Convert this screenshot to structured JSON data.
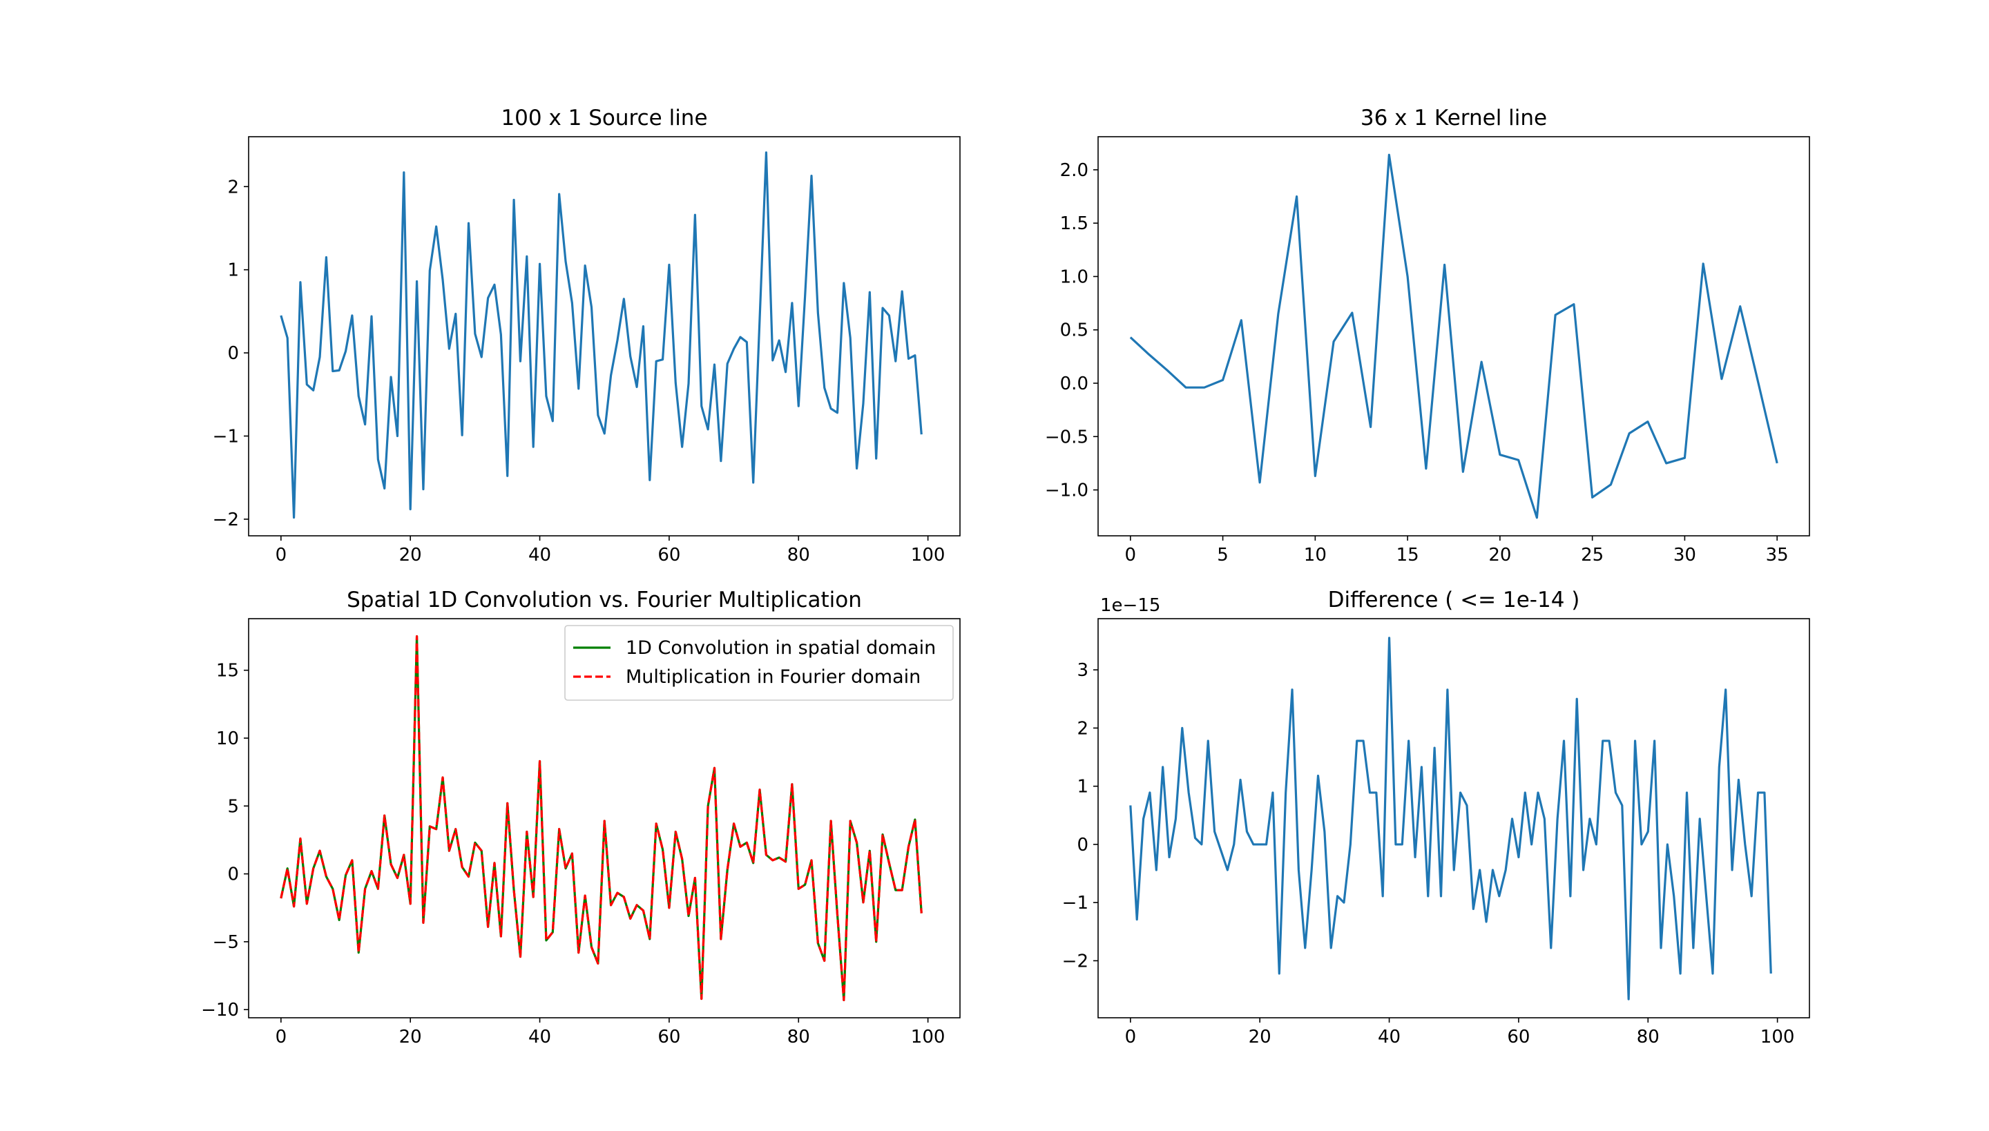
{
  "figure": {
    "background": "#ffffff"
  },
  "chart_data": [
    {
      "type": "line",
      "panel": "top-left",
      "title": "100 x 1 Source line",
      "xlabel": "",
      "ylabel": "",
      "xlim": [
        -5,
        104.95
      ],
      "ylim": [
        -2.2,
        2.6
      ],
      "xticks": [
        0,
        20,
        40,
        60,
        80,
        100
      ],
      "xtick_labels": [
        "0",
        "20",
        "40",
        "60",
        "80",
        "100"
      ],
      "yticks": [
        -2,
        -1,
        0,
        1,
        2
      ],
      "ytick_labels": [
        "−2",
        "−1",
        "0",
        "1",
        "2"
      ],
      "legend": null,
      "series": [
        {
          "name": "Source line",
          "color": "#1f77b4",
          "dash": "solid",
          "x_start": 0,
          "values": [
            0.45,
            0.18,
            -1.98,
            0.85,
            -0.38,
            -0.45,
            -0.05,
            1.15,
            -0.22,
            -0.21,
            0.02,
            0.45,
            -0.52,
            -0.86,
            0.44,
            -1.28,
            -1.63,
            -0.29,
            -1.0,
            2.17,
            -1.88,
            0.86,
            -1.64,
            0.99,
            1.52,
            0.88,
            0.05,
            0.47,
            -0.99,
            1.56,
            0.23,
            -0.05,
            0.66,
            0.82,
            0.22,
            -1.48,
            1.84,
            -0.1,
            1.16,
            -1.13,
            1.07,
            -0.52,
            -0.82,
            1.91,
            1.1,
            0.6,
            -0.43,
            1.05,
            0.55,
            -0.75,
            -0.97,
            -0.27,
            0.15,
            0.65,
            -0.04,
            -0.41,
            0.32,
            -1.53,
            -0.1,
            -0.08,
            1.06,
            -0.36,
            -1.13,
            -0.37,
            1.66,
            -0.64,
            -0.92,
            -0.14,
            -1.3,
            -0.13,
            0.05,
            0.19,
            0.13,
            -1.56,
            0.42,
            2.41,
            -0.09,
            0.15,
            -0.23,
            0.6,
            -0.64,
            0.68,
            2.13,
            0.48,
            -0.42,
            -0.67,
            -0.72,
            0.84,
            0.18,
            -1.39,
            -0.61,
            0.73,
            -1.27,
            0.54,
            0.45,
            -0.1,
            0.74,
            -0.07,
            -0.03,
            -0.98
          ]
        }
      ]
    },
    {
      "type": "line",
      "panel": "top-right",
      "title": "36 x 1 Kernel line",
      "xlabel": "",
      "ylabel": "",
      "xlim": [
        -1.75,
        36.75
      ],
      "ylim": [
        -1.43,
        2.31
      ],
      "xticks": [
        0,
        5,
        10,
        15,
        20,
        25,
        30,
        35
      ],
      "xtick_labels": [
        "0",
        "5",
        "10",
        "15",
        "20",
        "25",
        "30",
        "35"
      ],
      "yticks": [
        -1.0,
        -0.5,
        0.0,
        0.5,
        1.0,
        1.5,
        2.0
      ],
      "ytick_labels": [
        "−1.0",
        "−0.5",
        "0.0",
        "0.5",
        "1.0",
        "1.5",
        "2.0"
      ],
      "legend": null,
      "series": [
        {
          "name": "Kernel line",
          "color": "#1f77b4",
          "dash": "solid",
          "x_start": 0,
          "values": [
            0.43,
            0.27,
            0.12,
            -0.04,
            -0.04,
            0.03,
            0.59,
            -0.93,
            0.65,
            1.75,
            -0.87,
            0.39,
            0.66,
            -0.41,
            2.14,
            1.0,
            -0.8,
            1.11,
            -0.83,
            0.2,
            -0.67,
            -0.72,
            -1.26,
            0.64,
            0.74,
            -1.07,
            -0.95,
            -0.47,
            -0.36,
            -0.75,
            -0.7,
            1.12,
            0.04,
            0.72,
            -0.01,
            -0.75
          ]
        }
      ]
    },
    {
      "type": "line",
      "panel": "bottom-left",
      "title": "Spatial 1D Convolution vs. Fourier Multiplication",
      "xlabel": "",
      "ylabel": "",
      "xlim": [
        -5,
        104.95
      ],
      "ylim": [
        -10.6,
        18.8
      ],
      "xticks": [
        0,
        20,
        40,
        60,
        80,
        100
      ],
      "xtick_labels": [
        "0",
        "20",
        "40",
        "60",
        "80",
        "100"
      ],
      "yticks": [
        -10,
        -5,
        0,
        5,
        10,
        15
      ],
      "ytick_labels": [
        "−10",
        "−5",
        "0",
        "5",
        "10",
        "15"
      ],
      "legend": {
        "position": "upper right",
        "entries": [
          "1D Convolution in spatial domain",
          "Multiplication in Fourier domain"
        ]
      },
      "series": [
        {
          "name": "1D Convolution in spatial domain",
          "color": "#008000",
          "dash": "solid",
          "x_start": 0,
          "values": [
            -1.8,
            0.4,
            -2.4,
            2.6,
            -2.2,
            0.4,
            1.7,
            -0.2,
            -1.1,
            -3.4,
            -0.1,
            1.0,
            -5.8,
            -1.1,
            0.2,
            -1.1,
            4.3,
            0.7,
            -0.3,
            1.4,
            -2.2,
            17.5,
            -3.6,
            3.5,
            3.3,
            7.1,
            1.7,
            3.3,
            0.5,
            -0.2,
            2.3,
            1.7,
            -3.9,
            0.8,
            -4.6,
            5.2,
            -1.2,
            -6.1,
            3.1,
            -1.7,
            8.3,
            -4.9,
            -4.3,
            3.3,
            0.4,
            1.5,
            -5.8,
            -1.6,
            -5.4,
            -6.6,
            3.9,
            -2.3,
            -1.4,
            -1.7,
            -3.3,
            -2.3,
            -2.7,
            -4.8,
            3.7,
            1.8,
            -2.5,
            3.1,
            1.1,
            -3.1,
            -0.3,
            -9.2,
            5.0,
            7.8,
            -4.8,
            0.3,
            3.7,
            2.0,
            2.3,
            0.8,
            6.2,
            1.4,
            1.0,
            1.2,
            0.9,
            6.6,
            -1.1,
            -0.8,
            1.0,
            -5.1,
            -6.4,
            3.9,
            -3.0,
            -9.3,
            3.9,
            2.3,
            -2.1,
            1.7,
            -5.0,
            2.9,
            0.8,
            -1.2,
            -1.2,
            2.0,
            4.0,
            -2.9
          ]
        },
        {
          "name": "Multiplication in Fourier domain",
          "color": "#ff0000",
          "dash": "dashed",
          "x_start": 0,
          "values": [
            -1.8,
            0.4,
            -2.4,
            2.6,
            -2.2,
            0.4,
            1.7,
            -0.2,
            -1.1,
            -3.4,
            -0.1,
            1.0,
            -5.8,
            -1.1,
            0.2,
            -1.1,
            4.3,
            0.7,
            -0.3,
            1.4,
            -2.2,
            17.5,
            -3.6,
            3.5,
            3.3,
            7.1,
            1.7,
            3.3,
            0.5,
            -0.2,
            2.3,
            1.7,
            -3.9,
            0.8,
            -4.6,
            5.2,
            -1.2,
            -6.1,
            3.1,
            -1.7,
            8.3,
            -4.9,
            -4.3,
            3.3,
            0.4,
            1.5,
            -5.8,
            -1.6,
            -5.4,
            -6.6,
            3.9,
            -2.3,
            -1.4,
            -1.7,
            -3.3,
            -2.3,
            -2.7,
            -4.8,
            3.7,
            1.8,
            -2.5,
            3.1,
            1.1,
            -3.1,
            -0.3,
            -9.2,
            5.0,
            7.8,
            -4.8,
            0.3,
            3.7,
            2.0,
            2.3,
            0.8,
            6.2,
            1.4,
            1.0,
            1.2,
            0.9,
            6.6,
            -1.1,
            -0.8,
            1.0,
            -5.1,
            -6.4,
            3.9,
            -3.0,
            -9.3,
            3.9,
            2.3,
            -2.1,
            1.7,
            -5.0,
            2.9,
            0.8,
            -1.2,
            -1.2,
            2.0,
            4.0,
            -2.9
          ]
        }
      ]
    },
    {
      "type": "line",
      "panel": "bottom-right",
      "title": "Difference ( <= 1e-14 )",
      "xlabel": "",
      "ylabel": "",
      "offset_text": "1e−15",
      "xlim": [
        -5,
        104.95
      ],
      "ylim": [
        -2.98,
        3.88
      ],
      "xticks": [
        0,
        20,
        40,
        60,
        80,
        100
      ],
      "xtick_labels": [
        "0",
        "20",
        "40",
        "60",
        "80",
        "100"
      ],
      "yticks": [
        -2,
        -1,
        0,
        1,
        2,
        3
      ],
      "ytick_labels": [
        "−2",
        "−1",
        "0",
        "1",
        "2",
        "3"
      ],
      "legend": null,
      "series": [
        {
          "name": "Difference",
          "color": "#1f77b4",
          "dash": "solid",
          "x_start": 0,
          "values": [
            0.67,
            -1.29,
            0.44,
            0.89,
            -0.44,
            1.33,
            -0.22,
            0.44,
            2.0,
            0.89,
            0.11,
            0.0,
            1.78,
            0.22,
            -0.11,
            -0.44,
            0.0,
            1.11,
            0.22,
            0.0,
            0.0,
            0.0,
            0.89,
            -2.22,
            0.89,
            2.66,
            -0.44,
            -1.78,
            -0.44,
            1.18,
            0.22,
            -1.78,
            -0.89,
            -1.0,
            0.0,
            1.78,
            1.78,
            0.89,
            0.89,
            -0.89,
            3.55,
            0.0,
            0.0,
            1.78,
            -0.22,
            1.33,
            -0.89,
            1.66,
            -0.89,
            2.66,
            -0.44,
            0.89,
            0.67,
            -1.11,
            -0.44,
            -1.33,
            -0.44,
            -0.89,
            -0.44,
            0.44,
            -0.22,
            0.89,
            0.0,
            0.89,
            0.44,
            -1.78,
            0.44,
            1.78,
            -0.89,
            2.5,
            -0.44,
            0.44,
            0.0,
            1.78,
            1.78,
            0.89,
            0.67,
            -2.66,
            1.78,
            0.0,
            0.22,
            1.78,
            -1.78,
            0.0,
            -0.89,
            -2.22,
            0.89,
            -1.78,
            0.44,
            -0.89,
            -2.22,
            1.33,
            2.66,
            -0.44,
            1.11,
            0.0,
            -0.89,
            0.89,
            0.89,
            -2.22
          ]
        }
      ]
    }
  ]
}
